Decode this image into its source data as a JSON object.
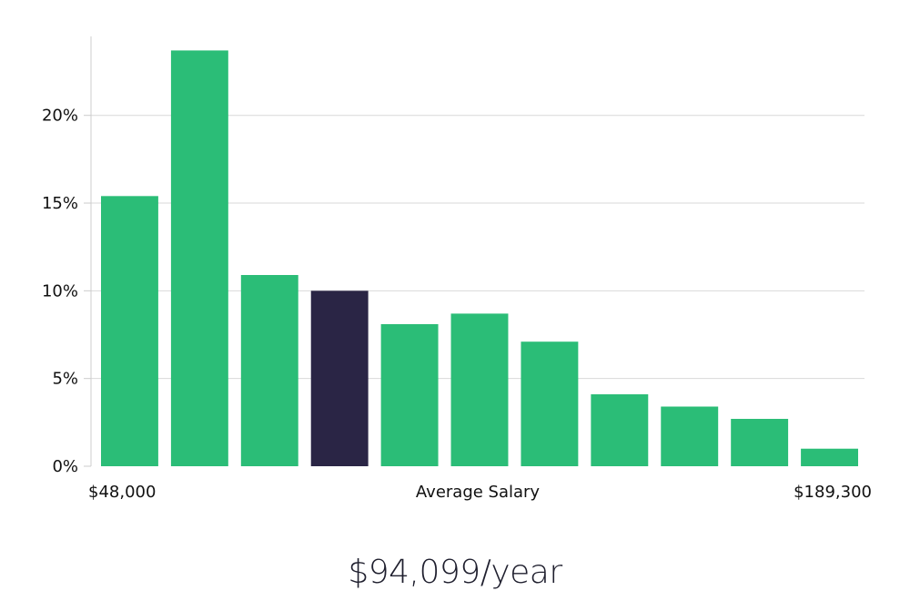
{
  "chart_data": {
    "type": "bar",
    "title": "",
    "xlabel": "Average Salary",
    "ylabel": "",
    "x_min_label": "$48,000",
    "x_max_label": "$189,300",
    "ylim": [
      0,
      24.5
    ],
    "yticks": [
      0,
      5,
      10,
      15,
      20
    ],
    "ytick_labels": [
      "0%",
      "5%",
      "10%",
      "15%",
      "20%"
    ],
    "values": [
      15.4,
      23.7,
      10.9,
      10.0,
      8.1,
      8.7,
      7.1,
      4.1,
      3.4,
      2.7,
      1.0
    ],
    "highlight_index": 3,
    "grid": true,
    "colors": {
      "bar": "#2bbd77",
      "highlight": "#2a2545",
      "grid": "#d9d9d9",
      "axis": "#cccccc"
    }
  },
  "summary": {
    "salary_text": "$94,099/year"
  }
}
